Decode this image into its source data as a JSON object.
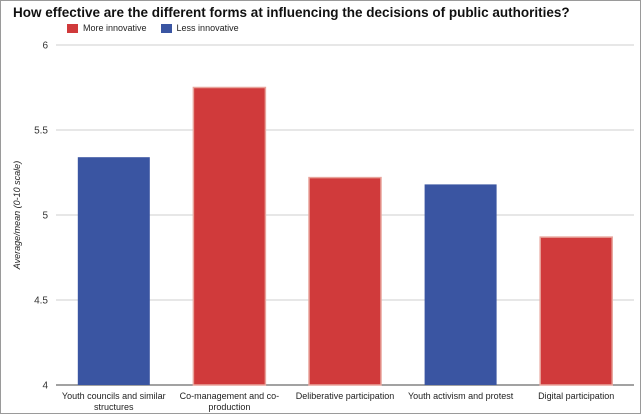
{
  "chart_data": {
    "type": "bar",
    "title": "How effective are the different forms at influencing the decisions of public authorities?",
    "ylabel": "Average/mean (0-10 scale)",
    "xlabel": "",
    "ylim": [
      4,
      6
    ],
    "yticks": [
      "4",
      "4.5",
      "5",
      "5.5",
      "6"
    ],
    "grid": true,
    "legend": {
      "placement": "top-left",
      "entries": [
        {
          "name": "More innovative",
          "color": "#d03a3b"
        },
        {
          "name": "Less innovative",
          "color": "#3a55a2"
        }
      ]
    },
    "categories": [
      [
        "Youth councils and similar",
        "structures"
      ],
      [
        "Co-management and co-",
        "production"
      ],
      [
        "Deliberative participation"
      ],
      [
        "Youth activism and protest"
      ],
      [
        "Digital participation"
      ]
    ],
    "values": [
      5.34,
      5.75,
      5.22,
      5.18,
      4.87
    ],
    "groups": [
      "Less innovative",
      "More innovative",
      "More innovative",
      "Less innovative",
      "More innovative"
    ]
  }
}
